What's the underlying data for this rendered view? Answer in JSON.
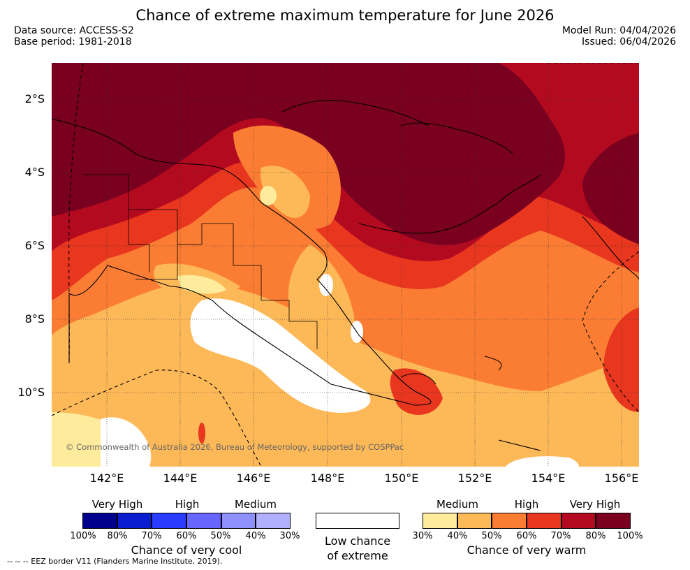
{
  "title": "Chance of extreme maximum temperature for June 2026",
  "meta": {
    "data_source": "Data source: ACCESS-S2",
    "base_period": "Base period: 1981-2018",
    "model_run": "Model Run: 04/04/2026",
    "issued": "Issued: 06/04/2026"
  },
  "axes": {
    "lat_labels": [
      "2°S",
      "4°S",
      "6°S",
      "8°S",
      "10°S"
    ],
    "lon_labels": [
      "142°E",
      "144°E",
      "146°E",
      "148°E",
      "150°E",
      "152°E",
      "154°E",
      "156°E"
    ]
  },
  "copyright": "© Commonwealth of Australia 2026, Bureau of Meteorology, supported by COSPPac",
  "legend": {
    "cool": {
      "headings": [
        "Very High",
        "High",
        "Medium"
      ],
      "colors": [
        "#00008c",
        "#0a1ed0",
        "#2a3cff",
        "#6666ff",
        "#8f8fff",
        "#b0b0ff"
      ],
      "ticks": [
        "100%",
        "80%",
        "70%",
        "60%",
        "50%",
        "40%",
        "30%"
      ],
      "caption": "Chance of very cool"
    },
    "low": {
      "color": "#ffffff",
      "caption_line1": "Low chance",
      "caption_line2": "of extreme"
    },
    "warm": {
      "headings": [
        "Medium",
        "High",
        "Very High"
      ],
      "colors": [
        "#feeb9c",
        "#fdb857",
        "#fb7d33",
        "#e8361f",
        "#b40a1f",
        "#7a0020"
      ],
      "ticks": [
        "30%",
        "40%",
        "50%",
        "60%",
        "70%",
        "80%",
        "100%"
      ],
      "caption": "Chance of very warm"
    }
  },
  "eez_note": "--  --  -- EEZ border V11 (Flanders Marine Institute, 2019)."
}
